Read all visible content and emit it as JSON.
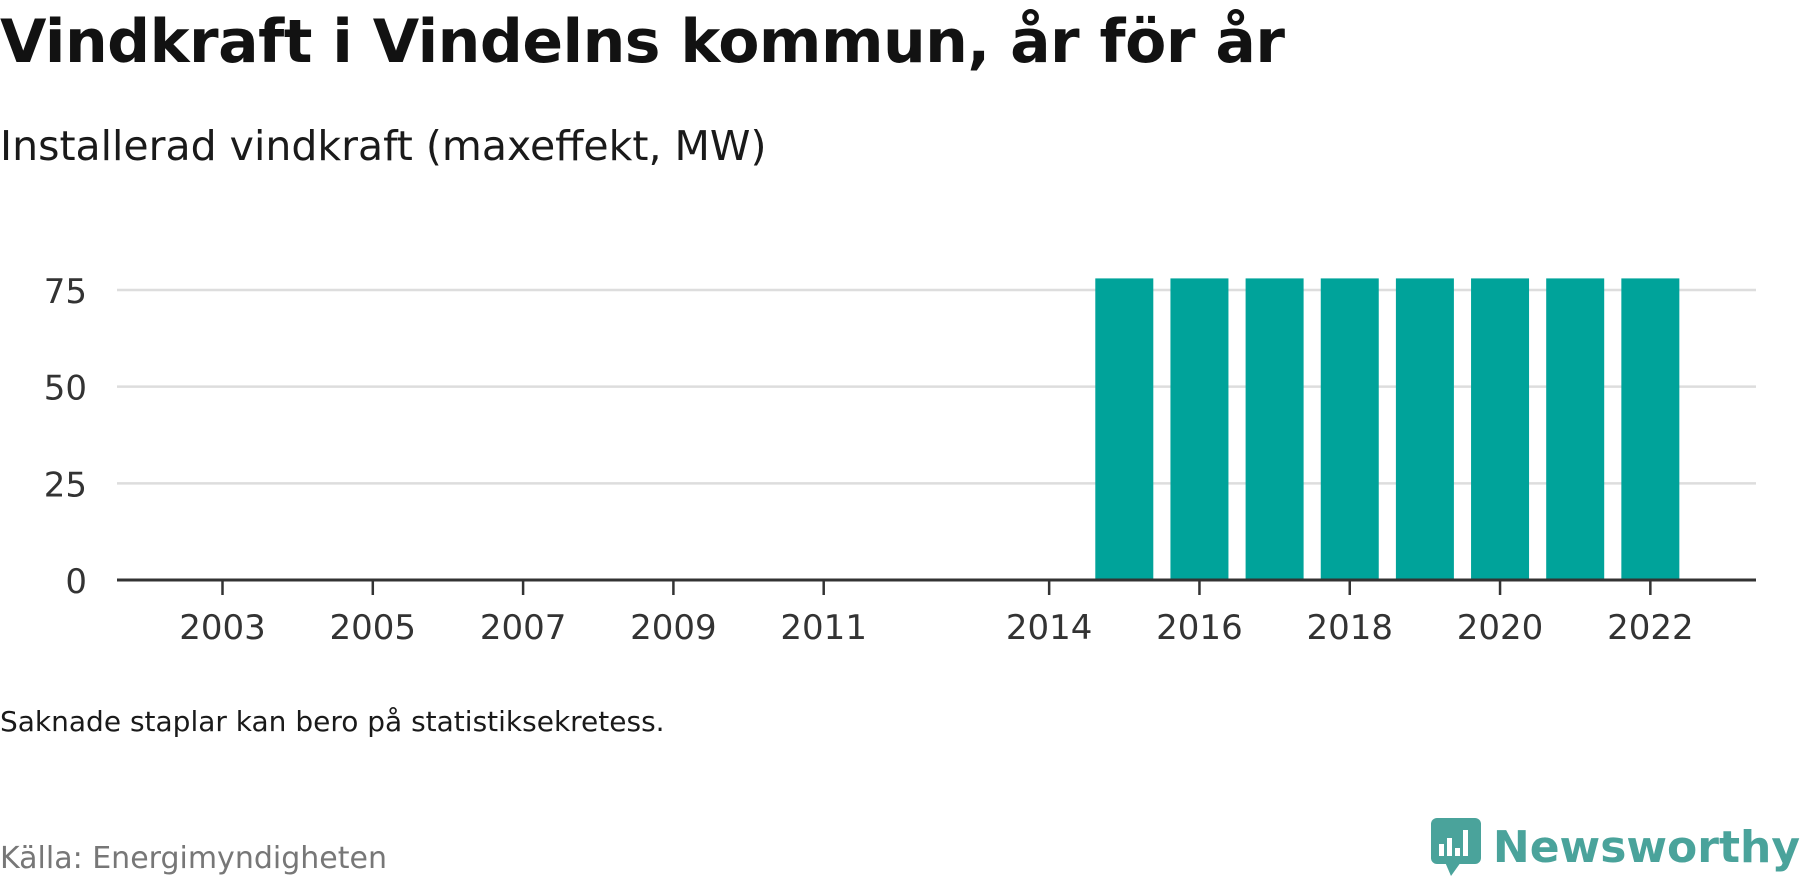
{
  "title": "Vindkraft i Vindelns kommun, år för år",
  "subtitle": "Installerad vindkraft (maxeffekt, MW)",
  "note": "Saknade staplar kan bero på statistiksekretess.",
  "source": "Källa: Energimyndigheten",
  "brand": {
    "name": "Newsworthy",
    "logo_icon": "chart-speech-bubble-icon",
    "color": "#4aa39b"
  },
  "chart_data": {
    "type": "bar",
    "categories": [
      "2003",
      "2004",
      "2005",
      "2006",
      "2007",
      "2008",
      "2009",
      "2010",
      "2011",
      "2012",
      "2013",
      "2014",
      "2015",
      "2016",
      "2017",
      "2018",
      "2019",
      "2020",
      "2021",
      "2022"
    ],
    "values": [
      0,
      0,
      0,
      0,
      0,
      0,
      0,
      0,
      0,
      null,
      null,
      0,
      78,
      78,
      78,
      78,
      78,
      78,
      78,
      78
    ],
    "x_tick_labels": [
      "2003",
      "2005",
      "2007",
      "2009",
      "2011",
      "2014",
      "2016",
      "2018",
      "2020",
      "2022"
    ],
    "y_ticks": [
      0,
      25,
      50,
      75
    ],
    "ylim": [
      0,
      80
    ],
    "xlabel": "",
    "ylabel": "",
    "grid": true,
    "legend": "none",
    "bar_color": "#00a39a",
    "grid_color": "#dddddd",
    "axis_color": "#333333"
  }
}
